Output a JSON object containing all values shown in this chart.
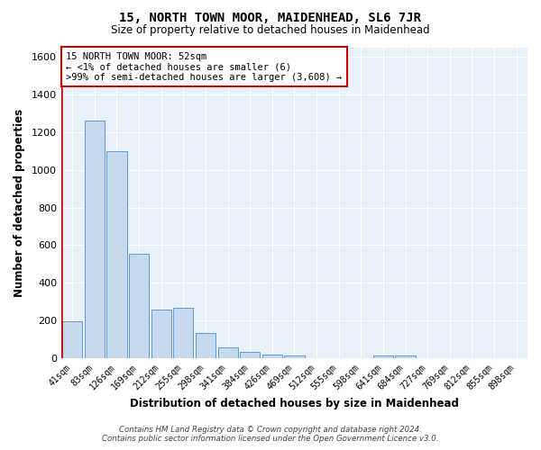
{
  "title": "15, NORTH TOWN MOOR, MAIDENHEAD, SL6 7JR",
  "subtitle": "Size of property relative to detached houses in Maidenhead",
  "xlabel": "Distribution of detached houses by size in Maidenhead",
  "ylabel": "Number of detached properties",
  "footer_line1": "Contains HM Land Registry data © Crown copyright and database right 2024.",
  "footer_line2": "Contains public sector information licensed under the Open Government Licence v3.0.",
  "categories": [
    "41sqm",
    "83sqm",
    "126sqm",
    "169sqm",
    "212sqm",
    "255sqm",
    "298sqm",
    "341sqm",
    "384sqm",
    "426sqm",
    "469sqm",
    "512sqm",
    "555sqm",
    "598sqm",
    "641sqm",
    "684sqm",
    "727sqm",
    "769sqm",
    "812sqm",
    "855sqm",
    "898sqm"
  ],
  "values": [
    197,
    1262,
    1097,
    554,
    260,
    268,
    133,
    60,
    33,
    18,
    13,
    0,
    0,
    0,
    13,
    13,
    0,
    0,
    0,
    0,
    0
  ],
  "bar_color": "#c8d9ee",
  "bar_edge_color": "#5b9bd5",
  "bg_color": "#e8f0fa",
  "grid_color": "#ffffff",
  "annotation_line1": "15 NORTH TOWN MOOR: 52sqm",
  "annotation_line2": "← <1% of detached houses are smaller (6)",
  "annotation_line3": ">99% of semi-detached houses are larger (3,608) →",
  "annotation_box_color": "#ffffff",
  "annotation_border_color": "#cc0000",
  "property_line_color": "#cc0000",
  "ylim": [
    0,
    1650
  ],
  "yticks": [
    0,
    200,
    400,
    600,
    800,
    1000,
    1200,
    1400,
    1600
  ]
}
